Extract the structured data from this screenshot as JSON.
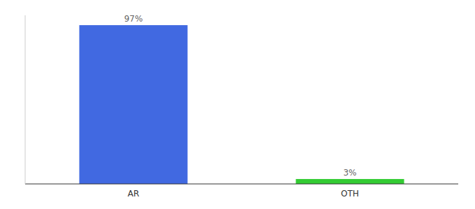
{
  "chart_data": {
    "type": "bar",
    "categories": [
      "AR",
      "OTH"
    ],
    "values": [
      97,
      3
    ],
    "value_labels": [
      "97%",
      "3%"
    ],
    "colors": [
      "#4169e1",
      "#33cc33"
    ],
    "ylim": [
      0,
      103
    ],
    "data_labels": true,
    "tick_labels": "x"
  }
}
